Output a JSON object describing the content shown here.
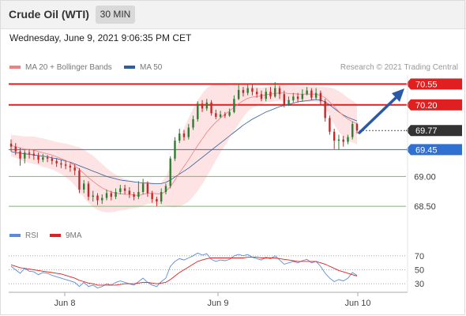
{
  "header": {
    "title": "Crude Oil (WTI)",
    "timeframe": "30 MIN"
  },
  "datetime": "Wednesday, June 9, 2021 9:06:35 PM CET",
  "credit": "Research © 2021 Trading Central",
  "legend": {
    "ma20": {
      "label": "MA 20 + Bollinger Bands",
      "color": "#f08080"
    },
    "ma50": {
      "label": "MA 50",
      "color": "#2e5e9e"
    },
    "rsi": {
      "label": "RSI",
      "color": "#5b8bd8"
    },
    "ma9": {
      "label": "9MA",
      "color": "#e02020"
    }
  },
  "chart_data": [
    {
      "type": "candlestick",
      "ylim": [
        68.25,
        70.7
      ],
      "x_tick_labels": [
        "Jun 8",
        "Jun 9",
        "Jun 10"
      ],
      "price_levels": [
        {
          "value": "70.55",
          "kind": "resistance",
          "color": "#e02020"
        },
        {
          "value": "70.20",
          "kind": "resistance",
          "color": "#e02020"
        },
        {
          "value": "69.77",
          "kind": "current",
          "color": "#333333"
        },
        {
          "value": "69.45",
          "kind": "support",
          "color": "#3070d0"
        },
        {
          "value": "69.00",
          "kind": "support",
          "color": "#6fbf5f"
        },
        {
          "value": "68.50",
          "kind": "support",
          "color": "#6fbf5f"
        }
      ],
      "candles": [
        [
          69.55,
          69.5,
          69.62,
          69.42
        ],
        [
          69.5,
          69.42,
          69.56,
          69.36
        ],
        [
          69.42,
          69.3,
          69.48,
          69.18
        ],
        [
          69.3,
          69.4,
          69.44,
          69.22
        ],
        [
          69.4,
          69.38,
          69.46,
          69.3
        ],
        [
          69.38,
          69.35,
          69.44,
          69.28
        ],
        [
          69.35,
          69.28,
          69.4,
          69.22
        ],
        [
          69.28,
          69.32,
          69.38,
          69.24
        ],
        [
          69.32,
          69.3,
          69.36,
          69.24
        ],
        [
          69.3,
          69.26,
          69.34,
          69.2
        ],
        [
          69.26,
          69.22,
          69.3,
          69.16
        ],
        [
          69.22,
          69.2,
          69.28,
          69.14
        ],
        [
          69.2,
          69.18,
          69.26,
          69.12
        ],
        [
          69.18,
          69.15,
          69.22,
          69.08
        ],
        [
          69.15,
          69.1,
          69.2,
          69.02
        ],
        [
          69.1,
          68.78,
          69.14,
          68.72
        ],
        [
          68.78,
          68.88,
          68.94,
          68.72
        ],
        [
          68.88,
          68.66,
          68.92,
          68.6
        ],
        [
          68.66,
          68.68,
          68.76,
          68.58
        ],
        [
          68.68,
          68.6,
          68.72,
          68.52
        ],
        [
          68.6,
          68.64,
          68.7,
          68.54
        ],
        [
          68.64,
          68.72,
          68.78,
          68.6
        ],
        [
          68.72,
          68.66,
          68.76,
          68.6
        ],
        [
          68.66,
          68.74,
          68.8,
          68.62
        ],
        [
          68.74,
          68.8,
          68.86,
          68.7
        ],
        [
          68.8,
          68.76,
          68.86,
          68.7
        ],
        [
          68.76,
          68.7,
          68.82,
          68.64
        ],
        [
          68.7,
          68.66,
          68.74,
          68.6
        ],
        [
          68.66,
          68.74,
          68.92,
          68.62
        ],
        [
          68.74,
          68.88,
          68.96,
          68.7
        ],
        [
          68.88,
          68.72,
          68.92,
          68.66
        ],
        [
          68.72,
          68.62,
          68.76,
          68.56
        ],
        [
          68.62,
          68.58,
          68.66,
          68.5
        ],
        [
          68.58,
          68.74,
          68.8,
          68.54
        ],
        [
          68.74,
          68.84,
          68.88,
          68.7
        ],
        [
          68.84,
          69.3,
          69.34,
          68.8
        ],
        [
          69.3,
          69.6,
          69.66,
          69.26
        ],
        [
          69.6,
          69.72,
          69.8,
          69.56
        ],
        [
          69.72,
          69.66,
          69.78,
          69.6
        ],
        [
          69.66,
          69.82,
          69.88,
          69.62
        ],
        [
          69.82,
          69.96,
          70.02,
          69.78
        ],
        [
          69.96,
          70.22,
          70.26,
          69.92
        ],
        [
          70.22,
          70.14,
          70.28,
          70.08
        ],
        [
          70.14,
          70.24,
          70.3,
          70.1
        ],
        [
          70.24,
          70.06,
          70.28,
          70.02
        ],
        [
          70.06,
          70.0,
          70.12,
          69.96
        ],
        [
          70.0,
          70.04,
          70.1,
          69.98
        ],
        [
          70.04,
          70.02,
          70.08,
          69.98
        ],
        [
          70.02,
          70.08,
          70.14,
          70.0
        ],
        [
          70.08,
          70.3,
          70.36,
          70.06
        ],
        [
          70.3,
          70.45,
          70.55,
          70.28
        ],
        [
          70.45,
          70.4,
          70.5,
          70.34
        ],
        [
          70.4,
          70.48,
          70.55,
          70.36
        ],
        [
          70.48,
          70.42,
          70.54,
          70.36
        ],
        [
          70.42,
          70.38,
          70.48,
          70.32
        ],
        [
          70.38,
          70.3,
          70.44,
          70.26
        ],
        [
          70.3,
          70.42,
          70.48,
          70.26
        ],
        [
          70.42,
          70.34,
          70.5,
          70.3
        ],
        [
          70.34,
          70.48,
          70.58,
          70.32
        ],
        [
          70.48,
          70.38,
          70.52,
          70.3
        ],
        [
          70.38,
          70.2,
          70.44,
          70.16
        ],
        [
          70.2,
          70.28,
          70.34,
          70.18
        ],
        [
          70.28,
          70.34,
          70.4,
          70.24
        ],
        [
          70.34,
          70.3,
          70.4,
          70.24
        ],
        [
          70.3,
          70.38,
          70.46,
          70.26
        ],
        [
          70.38,
          70.44,
          70.5,
          70.36
        ],
        [
          70.44,
          70.32,
          70.48,
          70.28
        ],
        [
          70.32,
          70.4,
          70.48,
          70.28
        ],
        [
          70.4,
          70.26,
          70.44,
          70.2
        ],
        [
          70.26,
          69.98,
          70.3,
          69.92
        ],
        [
          69.98,
          69.75,
          70.02,
          69.7
        ],
        [
          69.75,
          69.6,
          69.8,
          69.46
        ],
        [
          69.6,
          69.62,
          69.7,
          69.45
        ],
        [
          69.62,
          69.58,
          69.68,
          69.5
        ],
        [
          69.58,
          69.66,
          69.7,
          69.54
        ],
        [
          69.66,
          69.88,
          69.92,
          69.62
        ],
        [
          69.88,
          69.77,
          69.9,
          69.72
        ]
      ],
      "ma20": [
        69.52,
        69.5,
        69.48,
        69.46,
        69.45,
        69.44,
        69.42,
        69.4,
        69.38,
        69.36,
        69.33,
        69.3,
        69.27,
        69.23,
        69.18,
        69.12,
        69.05,
        68.98,
        68.92,
        68.86,
        68.81,
        68.77,
        68.74,
        68.72,
        68.71,
        68.7,
        68.7,
        68.69,
        68.68,
        68.7,
        68.72,
        68.72,
        68.71,
        68.71,
        68.75,
        68.83,
        68.94,
        69.06,
        69.17,
        69.28,
        69.4,
        69.52,
        69.63,
        69.74,
        69.83,
        69.91,
        69.98,
        70.04,
        70.1,
        70.16,
        70.22,
        70.27,
        70.31,
        70.33,
        70.34,
        70.35,
        70.37,
        70.38,
        70.39,
        70.4,
        70.4,
        70.39,
        70.39,
        70.38,
        70.38,
        70.38,
        70.38,
        70.38,
        70.36,
        70.32,
        70.25,
        70.17,
        70.09,
        70.02,
        69.96,
        69.92,
        69.88
      ],
      "ma50": [
        69.42,
        69.4,
        69.39,
        69.38,
        69.37,
        69.36,
        69.35,
        69.34,
        69.33,
        69.31,
        69.3,
        69.28,
        69.26,
        69.24,
        69.21,
        69.18,
        69.15,
        69.12,
        69.09,
        69.06,
        69.03,
        69.0,
        68.98,
        68.96,
        68.94,
        68.93,
        68.92,
        68.91,
        68.9,
        68.89,
        68.89,
        68.88,
        68.88,
        68.88,
        68.9,
        68.94,
        68.99,
        69.04,
        69.09,
        69.14,
        69.2,
        69.26,
        69.32,
        69.38,
        69.44,
        69.5,
        69.56,
        69.62,
        69.68,
        69.74,
        69.8,
        69.86,
        69.91,
        69.96,
        70.0,
        70.04,
        70.08,
        70.11,
        70.14,
        70.17,
        70.19,
        70.21,
        70.23,
        70.25,
        70.26,
        70.27,
        70.28,
        70.29,
        70.28,
        70.25,
        70.2,
        70.14,
        70.08,
        70.03,
        69.99,
        69.96,
        69.93
      ],
      "bb_width": [
        0.18,
        0.19,
        0.2,
        0.21,
        0.22,
        0.23,
        0.23,
        0.24,
        0.24,
        0.24,
        0.25,
        0.26,
        0.28,
        0.3,
        0.33,
        0.37,
        0.4,
        0.42,
        0.43,
        0.42,
        0.4,
        0.37,
        0.34,
        0.31,
        0.28,
        0.26,
        0.24,
        0.22,
        0.2,
        0.19,
        0.18,
        0.18,
        0.18,
        0.19,
        0.24,
        0.34,
        0.46,
        0.56,
        0.64,
        0.7,
        0.74,
        0.76,
        0.76,
        0.74,
        0.7,
        0.64,
        0.58,
        0.52,
        0.46,
        0.4,
        0.34,
        0.28,
        0.22,
        0.18,
        0.16,
        0.14,
        0.13,
        0.13,
        0.13,
        0.13,
        0.13,
        0.13,
        0.13,
        0.13,
        0.13,
        0.13,
        0.13,
        0.13,
        0.14,
        0.18,
        0.24,
        0.3,
        0.34,
        0.36,
        0.36,
        0.35,
        0.34
      ]
    },
    {
      "type": "line",
      "name": "RSI",
      "ylim": [
        20,
        80
      ],
      "y_ticks": [
        "70",
        "50",
        "30"
      ],
      "series": [
        {
          "name": "RSI",
          "values": [
            55,
            50,
            45,
            52,
            48,
            47,
            43,
            46,
            45,
            42,
            40,
            38,
            36,
            34,
            32,
            26,
            32,
            26,
            28,
            24,
            26,
            30,
            28,
            32,
            34,
            32,
            30,
            28,
            33,
            38,
            32,
            28,
            26,
            33,
            38,
            55,
            62,
            66,
            64,
            67,
            70,
            74,
            71,
            73,
            65,
            62,
            64,
            63,
            65,
            70,
            72,
            70,
            72,
            68,
            66,
            64,
            68,
            66,
            70,
            64,
            58,
            60,
            62,
            60,
            63,
            65,
            60,
            62,
            55,
            45,
            38,
            33,
            36,
            34,
            38,
            46,
            42
          ]
        },
        {
          "name": "9MA",
          "values": [
            57,
            55,
            53,
            52,
            51,
            50,
            49,
            48,
            47,
            46,
            45,
            44,
            42,
            40,
            38,
            35,
            33,
            31,
            30,
            28,
            28,
            28,
            28,
            28,
            29,
            30,
            30,
            30,
            31,
            32,
            32,
            31,
            30,
            31,
            32,
            36,
            41,
            46,
            50,
            54,
            58,
            62,
            64,
            66,
            67,
            67,
            67,
            67,
            67,
            67,
            67,
            67,
            68,
            68,
            68,
            67,
            67,
            67,
            67,
            66,
            65,
            64,
            63,
            62,
            62,
            62,
            62,
            62,
            60,
            58,
            55,
            52,
            49,
            47,
            45,
            43,
            41
          ]
        }
      ]
    }
  ]
}
